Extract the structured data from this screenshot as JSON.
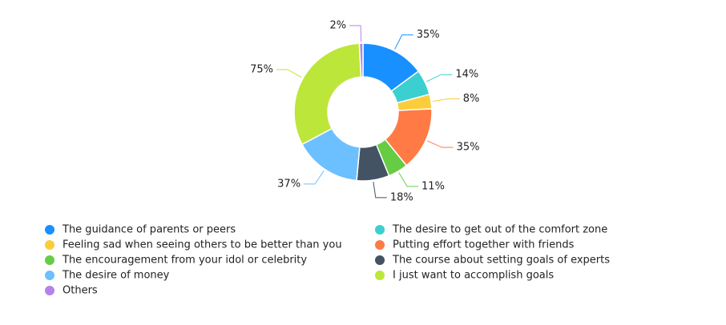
{
  "chart_data": {
    "type": "donut",
    "categories": [
      "The guidance of parents or peers",
      "The desire to get out of the comfort zone",
      "Feeling sad when seeing others to be better than you",
      "Putting effort together with friends",
      "The encouragement from your idol or celebrity",
      "The course about setting goals of experts",
      "The desire of money",
      "I just want to accomplish goals",
      "Others"
    ],
    "values": [
      35,
      14,
      8,
      35,
      11,
      18,
      37,
      75,
      2
    ],
    "value_labels": [
      "35%",
      "14%",
      "8%",
      "35%",
      "11%",
      "18%",
      "37%",
      "75%",
      "2%"
    ],
    "colors": [
      "#1890ff",
      "#3ccfcf",
      "#fbcd3a",
      "#ff7a45",
      "#66cc44",
      "#435363",
      "#6cc0ff",
      "#bde63a",
      "#b581eb"
    ]
  }
}
